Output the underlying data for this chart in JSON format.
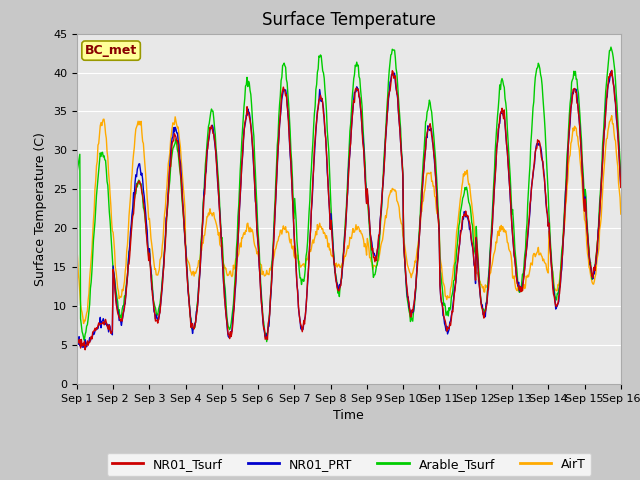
{
  "title": "Surface Temperature",
  "ylabel": "Surface Temperature (C)",
  "xlabel": "Time",
  "annotation": "BC_met",
  "ylim": [
    0,
    45
  ],
  "xlim": [
    0,
    15
  ],
  "xtick_labels": [
    "Sep 1",
    "Sep 2",
    "Sep 3",
    "Sep 4",
    "Sep 5",
    "Sep 6",
    "Sep 7",
    "Sep 8",
    "Sep 9",
    "Sep 10",
    "Sep 11",
    "Sep 12",
    "Sep 13",
    "Sep 14",
    "Sep 15",
    "Sep 16"
  ],
  "ytick_labels": [
    "0",
    "5",
    "10",
    "15",
    "20",
    "25",
    "30",
    "35",
    "40",
    "45"
  ],
  "yticks": [
    0,
    5,
    10,
    15,
    20,
    25,
    30,
    35,
    40,
    45
  ],
  "series_colors": {
    "NR01_Tsurf": "#cc0000",
    "NR01_PRT": "#0000cc",
    "Arable_Tsurf": "#00cc00",
    "AirT": "#ffaa00"
  },
  "legend_labels": [
    "NR01_Tsurf",
    "NR01_PRT",
    "Arable_Tsurf",
    "AirT"
  ],
  "fig_facecolor": "#c8c8c8",
  "ax_facecolor": "#e8e8e8",
  "grid_color": "#ffffff",
  "annotation_bg": "#ffff99",
  "annotation_text_color": "#880000",
  "annotation_border_color": "#999900",
  "title_fontsize": 12,
  "axis_label_fontsize": 9,
  "tick_fontsize": 8,
  "legend_fontsize": 9,
  "linewidth": 1.0
}
